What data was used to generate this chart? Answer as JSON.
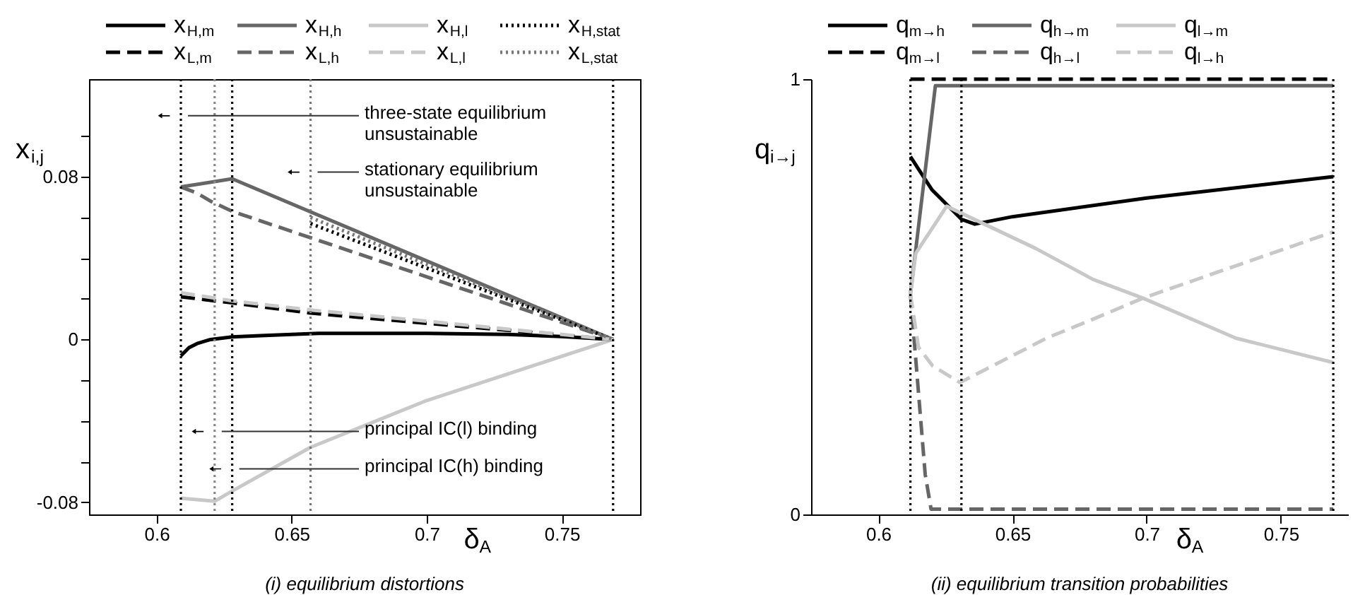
{
  "chart_data": [
    {
      "type": "line",
      "title": "(i) equilibrium distortions",
      "xlabel": "δ$_{A}$",
      "ylabel": "x$_{i,j}$",
      "legend": "top",
      "xlim": [
        0.575,
        0.779
      ],
      "xticks": [
        0.6,
        0.65,
        0.7,
        0.75
      ],
      "ylim": [
        -0.086,
        0.128
      ],
      "yticks": [
        -0.08,
        {
          "value": -0.06,
          "label": null
        },
        {
          "value": -0.04,
          "label": null
        },
        {
          "value": -0.02,
          "label": null
        },
        0,
        {
          "value": 0.02,
          "label": null
        },
        {
          "value": 0.04,
          "label": null
        },
        {
          "value": 0.06,
          "label": null
        },
        0.08,
        {
          "value": 0.1,
          "label": null
        }
      ],
      "series": [
        {
          "name": "x$_{H,m}$",
          "color": "#000000",
          "line_style": "solid",
          "x": [
            0.609,
            0.612,
            0.615,
            0.62,
            0.628,
            0.64,
            0.66,
            0.7,
            0.73,
            0.75,
            0.769
          ],
          "values": [
            -0.008,
            -0.004,
            -0.002,
            0,
            0.0013,
            0.002,
            0.003,
            0.003,
            0.0025,
            0.0015,
            0
          ]
        },
        {
          "name": "x$_{H,h}$",
          "color": "#666666",
          "line_style": "solid",
          "x": [
            0.609,
            0.628,
            0.769
          ],
          "values": [
            0.075,
            0.079,
            0
          ]
        },
        {
          "name": "x$_{H,l}$",
          "color": "#c8c8c8",
          "line_style": "solid",
          "x": [
            0.609,
            0.6215,
            0.628,
            0.657,
            0.7,
            0.769
          ],
          "values": [
            -0.078,
            -0.0795,
            -0.0745,
            -0.053,
            -0.03,
            0
          ]
        },
        {
          "name": "x$_{H,stat}$",
          "color": "#000000",
          "line_style": "dotted",
          "x": [
            0.657,
            0.769
          ],
          "values": [
            0.057,
            0
          ]
        },
        {
          "name": "x$_{L,m}$",
          "color": "#000000",
          "line_style": "dashed",
          "x": [
            0.609,
            0.628,
            0.657,
            0.7,
            0.769
          ],
          "values": [
            0.021,
            0.018,
            0.013,
            0.008,
            0
          ]
        },
        {
          "name": "x$_{L,h}$",
          "color": "#666666",
          "line_style": "dashed",
          "x": [
            0.609,
            0.615,
            0.62,
            0.628,
            0.769
          ],
          "values": [
            0.075,
            0.072,
            0.068,
            0.063,
            0
          ]
        },
        {
          "name": "x$_{L,l}$",
          "color": "#c8c8c8",
          "line_style": "dashed",
          "x": [
            0.609,
            0.628,
            0.657,
            0.7,
            0.769
          ],
          "values": [
            0.023,
            0.019,
            0.0145,
            0.009,
            0
          ]
        },
        {
          "name": "x$_{L,stat}$",
          "color": "#777777",
          "line_style": "dotted",
          "x": [
            0.657,
            0.769
          ],
          "values": [
            0.06,
            0
          ]
        }
      ],
      "ref_lines": [
        {
          "axis": "x",
          "value": 0.609,
          "color": "#000000",
          "line_style": "dotted"
        },
        {
          "axis": "x",
          "value": 0.6215,
          "color": "#888888",
          "line_style": "dotted"
        },
        {
          "axis": "x",
          "value": 0.628,
          "color": "#000000",
          "line_style": "dotted"
        },
        {
          "axis": "x",
          "value": 0.657,
          "color": "#777777",
          "line_style": "dotted"
        },
        {
          "axis": "x",
          "value": 0.769,
          "color": "#000000",
          "line_style": "dotted"
        }
      ],
      "annotations": [
        {
          "text": "three-state equilibrium\nunsustainable",
          "x": 0.609,
          "y": 0.11
        },
        {
          "text": "stationary equilibrium\nunsustainable",
          "x": 0.657,
          "y": 0.0823
        },
        {
          "text": "principal IC(l) binding",
          "x": 0.6215,
          "y": -0.0452
        },
        {
          "text": "principal IC(h) binding",
          "x": 0.628,
          "y": -0.0636
        }
      ]
    },
    {
      "type": "line",
      "title": "(ii) equilibrium transition probabilities",
      "xlabel": "δ$_{A}$",
      "ylabel": "q$_{i→j}$",
      "legend": "top",
      "xlim": [
        0.575,
        0.775
      ],
      "xticks": [
        0.6,
        0.65,
        0.7,
        0.75
      ],
      "ylim": [
        0,
        1
      ],
      "yticks": [
        0,
        1
      ],
      "series": [
        {
          "name": "q$_{m→h}$",
          "color": "#000000",
          "line_style": "solid",
          "x": [
            0.612,
            0.62,
            0.631,
            0.636,
            0.65,
            0.7,
            0.7695
          ],
          "values": [
            0.822,
            0.746,
            0.678,
            0.667,
            0.684,
            0.727,
            0.776
          ]
        },
        {
          "name": "q$_{h→m}$",
          "color": "#666666",
          "line_style": "solid",
          "x": [
            0.612,
            0.6213,
            0.7695
          ],
          "values": [
            0.506,
            0.985,
            0.985
          ]
        },
        {
          "name": "q$_{l→m}$",
          "color": "#c8c8c8",
          "line_style": "solid",
          "x": [
            0.612,
            0.614,
            0.6255,
            0.6587,
            0.68,
            0.6986,
            0.7332,
            0.7695
          ],
          "values": [
            0.506,
            0.6,
            0.708,
            0.611,
            0.54,
            0.497,
            0.405,
            0.349
          ]
        },
        {
          "name": "q$_{m→l}$",
          "color": "#000000",
          "line_style": "dashed",
          "x": [
            0.612,
            0.7695
          ],
          "values": [
            1,
            1
          ]
        },
        {
          "name": "q$_{h→l}$",
          "color": "#666666",
          "line_style": "dashed",
          "x": [
            0.612,
            0.6175,
            0.6197,
            0.7695
          ],
          "values": [
            0.506,
            0.092,
            0.012,
            0.012
          ]
        },
        {
          "name": "q$_{l→h}$",
          "color": "#c8c8c8",
          "line_style": "dashed",
          "x": [
            0.612,
            0.615,
            0.6203,
            0.6305,
            0.6627,
            0.6802,
            0.6986,
            0.7695
          ],
          "values": [
            0.506,
            0.384,
            0.341,
            0.303,
            0.405,
            0.449,
            0.497,
            0.649
          ]
        }
      ],
      "ref_lines": [
        {
          "axis": "x",
          "value": 0.612,
          "color": "#000000",
          "line_style": "dotted"
        },
        {
          "axis": "x",
          "value": 0.631,
          "color": "#000000",
          "line_style": "dotted"
        },
        {
          "axis": "x",
          "value": 0.7695,
          "color": "#000000",
          "line_style": "dotted"
        }
      ]
    }
  ]
}
